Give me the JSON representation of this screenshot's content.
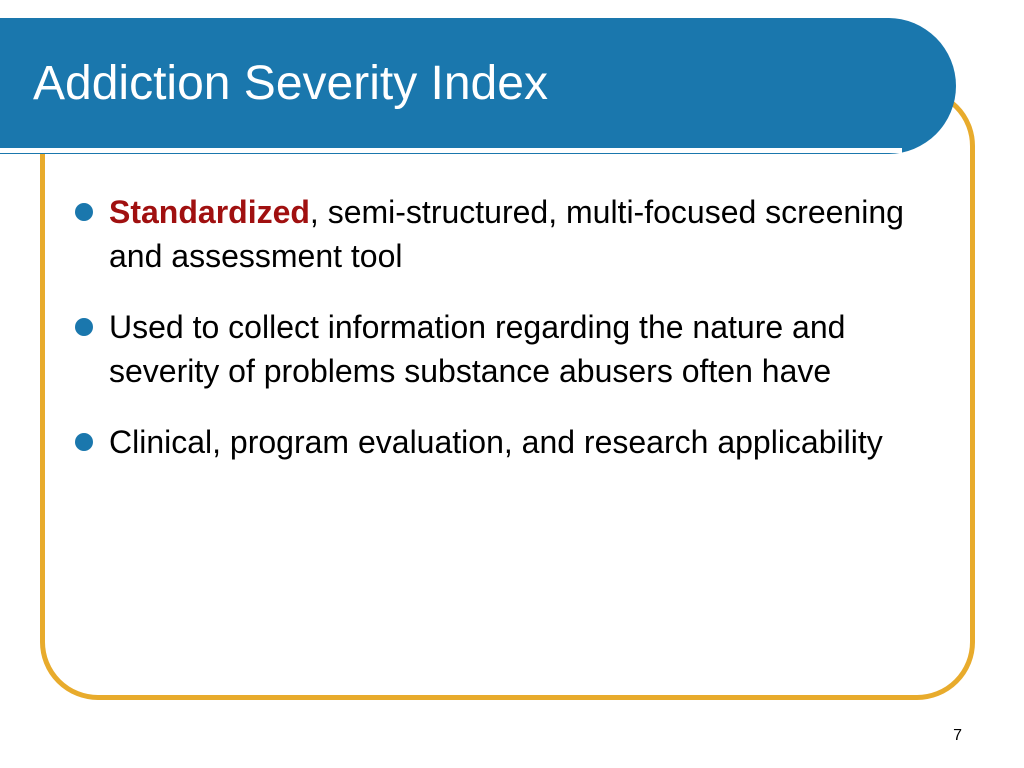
{
  "slide": {
    "title": "Addiction Severity Index",
    "bullets": [
      {
        "emphasis": "Standardized",
        "text": ", semi-structured, multi-focused screening and assessment tool"
      },
      {
        "emphasis": "",
        "text": "Used to collect information regarding the nature and severity of problems substance abusers often have"
      },
      {
        "emphasis": "",
        "text": "Clinical, program evaluation, and research applicability"
      }
    ],
    "page_number": "7"
  },
  "colors": {
    "title_bar": "#1a77ad",
    "frame_border": "#e8ab2c",
    "emphasis_text": "#a01010",
    "bullet": "#1a77ad"
  }
}
